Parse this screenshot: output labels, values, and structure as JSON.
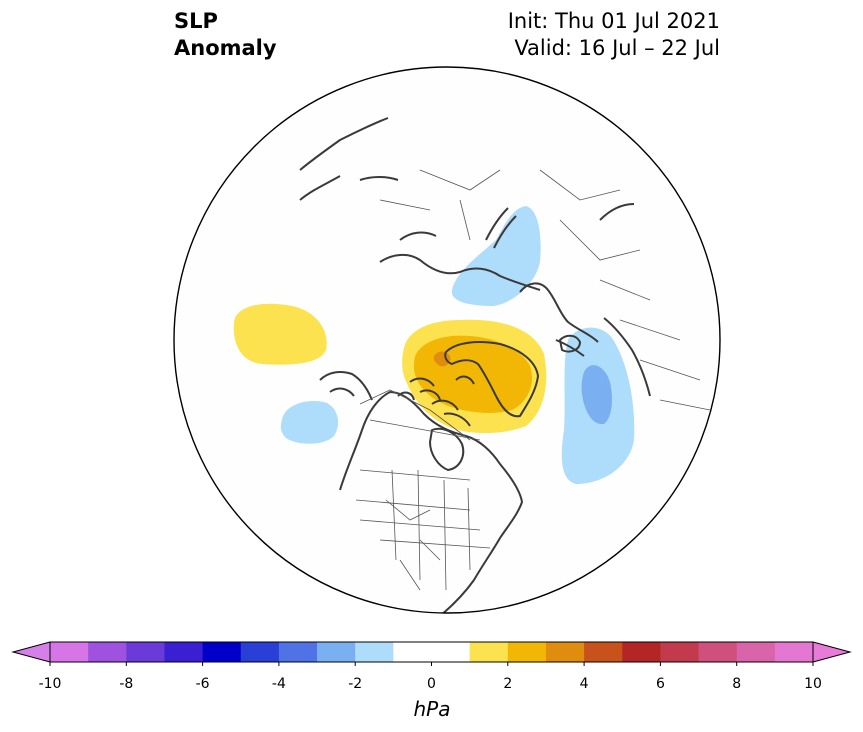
{
  "header": {
    "title_line1": "SLP",
    "title_line2": "Anomaly",
    "init_text": "Init: Thu 01 Jul 2021",
    "valid_text": "Valid: 16 Jul – 22 Jul"
  },
  "colorbar": {
    "unit": "hPa",
    "min": -10,
    "max": 10,
    "step": 1,
    "ticks": [
      "-10",
      "-8",
      "-6",
      "-4",
      "-2",
      "0",
      "2",
      "4",
      "6",
      "8",
      "10"
    ],
    "extend_low_color": "#d580e8",
    "extend_high_color": "#e87bd8",
    "bin_colors": [
      "#d676e6",
      "#9f52df",
      "#6a3bd9",
      "#3a1fd3",
      "#0000c8",
      "#2a3fd6",
      "#4f73e6",
      "#7ab0f2",
      "#aedcfb",
      "#ffffff",
      "#ffffff",
      "#fde24f",
      "#f2b705",
      "#df8d0e",
      "#c8521b",
      "#b42626",
      "#c23a4c",
      "#cf507c",
      "#d964a9",
      "#e477d2"
    ]
  },
  "map": {
    "projection": "north-polar-stereographic",
    "features": [
      {
        "name": "positive-anomaly-greenland",
        "value_range": "+1 to +5 hPa"
      },
      {
        "name": "positive-anomaly-north-pacific",
        "value_range": "+1 to +2 hPa"
      },
      {
        "name": "negative-anomaly-scandinavia",
        "value_range": "-1 to -2 hPa"
      },
      {
        "name": "negative-anomaly-europe-west",
        "value_range": "-1 to -3 hPa"
      },
      {
        "name": "negative-anomaly-east-pacific",
        "value_range": "-1 to -2 hPa"
      }
    ],
    "colors": {
      "light_yellow": "#fde24f",
      "gold": "#f2b705",
      "orange": "#df8d0e",
      "light_blue": "#aedcfb",
      "mid_blue": "#7ab0f2",
      "coast": "#3a3a3a",
      "border": "#555555"
    }
  }
}
